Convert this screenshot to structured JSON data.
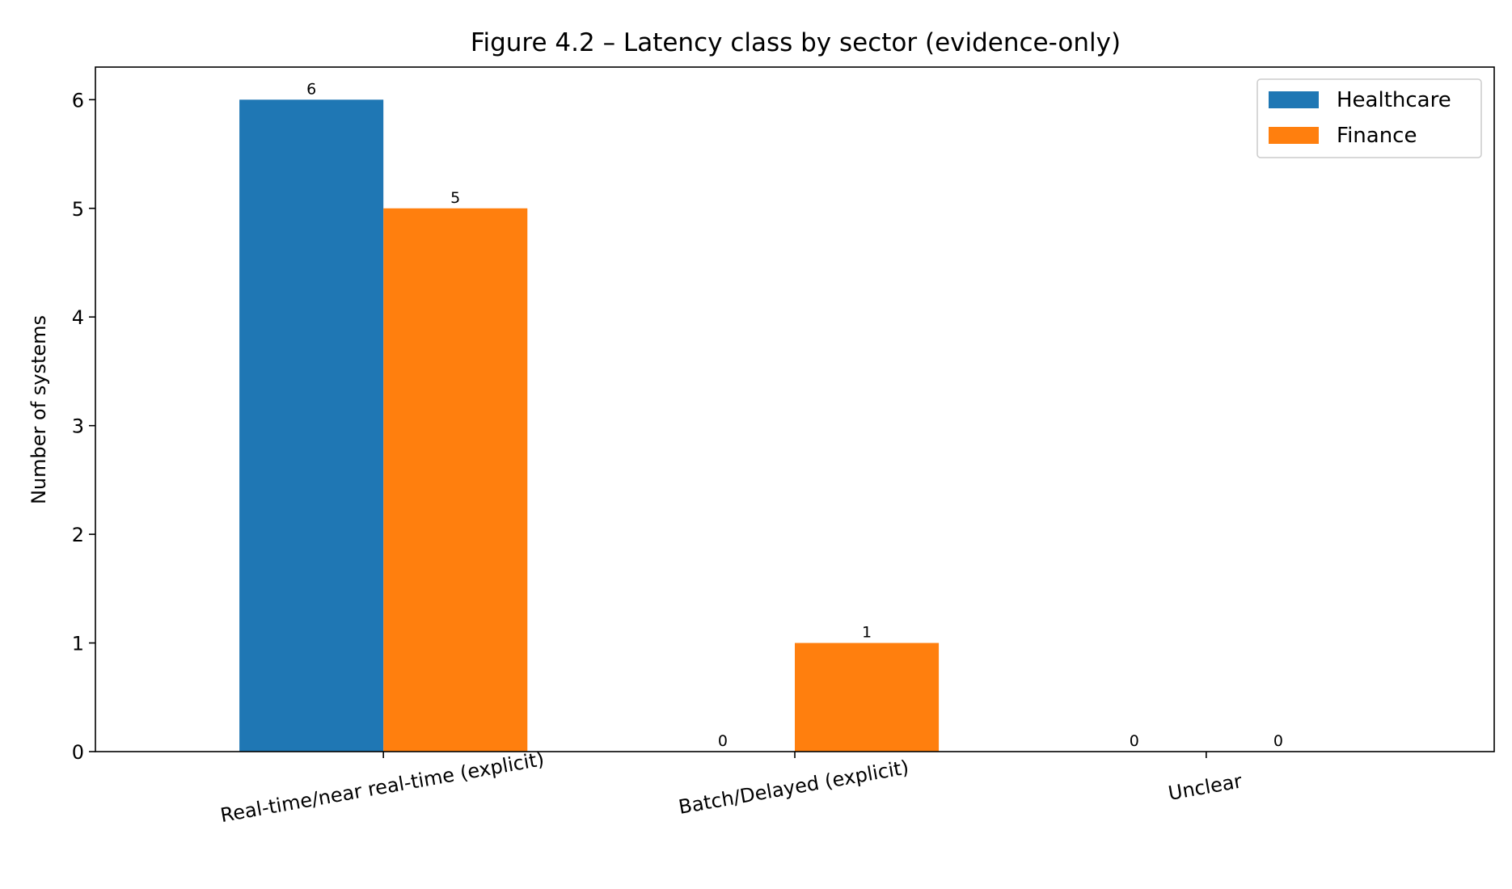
{
  "chart_data": {
    "type": "bar",
    "title": "Figure 4.2 – Latency class by sector (evidence-only)",
    "xlabel": "",
    "ylabel": "Number of systems",
    "categories": [
      "Real-time/near real-time (explicit)",
      "Batch/Delayed (explicit)",
      "Unclear"
    ],
    "series": [
      {
        "name": "Healthcare",
        "values": [
          6,
          0,
          0
        ],
        "color": "#1f77b4"
      },
      {
        "name": "Finance",
        "values": [
          5,
          1,
          0
        ],
        "color": "#ff7f0e"
      }
    ],
    "ylim": [
      0,
      6.3
    ],
    "yticks": [
      0,
      1,
      2,
      3,
      4,
      5,
      6
    ],
    "grid": false,
    "legend": "top-right",
    "data_labels": true
  }
}
